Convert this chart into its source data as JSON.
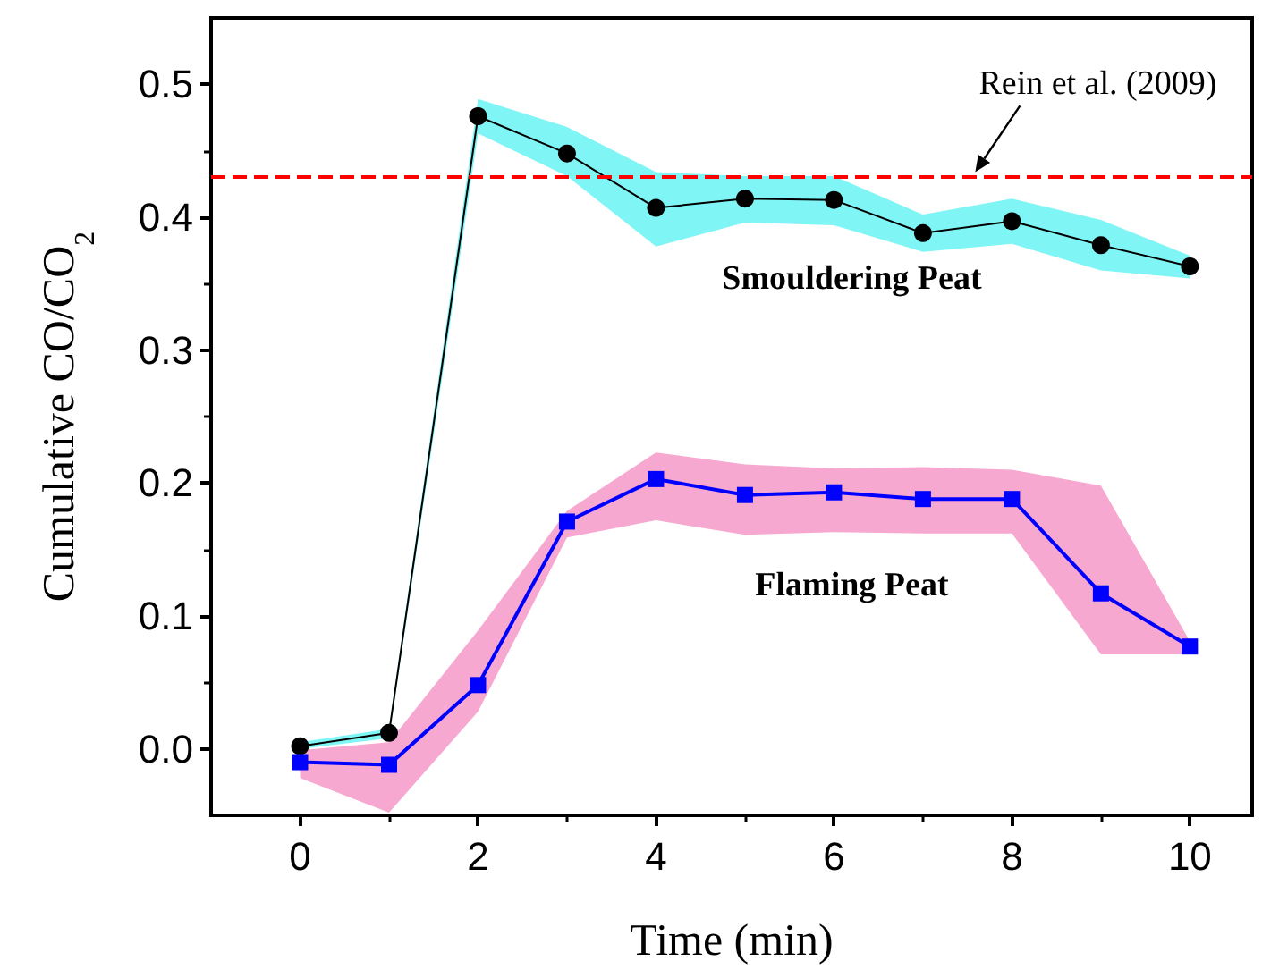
{
  "chart_data": {
    "type": "line",
    "xlabel": "Time (min)",
    "ylabel": "Cumulative CO/CO$_{2}$",
    "x": [
      0,
      1,
      2,
      3,
      4,
      5,
      6,
      7,
      8,
      9,
      10
    ],
    "xlim": [
      -1,
      10.7
    ],
    "xticks": [
      0,
      2,
      4,
      6,
      8,
      10
    ],
    "ylim": [
      -0.05,
      0.55
    ],
    "yticks": [
      {
        "value": 0,
        "label": "0.0"
      },
      0.1,
      0.2,
      0.3,
      0.4,
      0.5
    ],
    "series": [
      {
        "type": "area",
        "color": "#80f5f5",
        "values": [
          null,
          null,
          null,
          null,
          null,
          null,
          null,
          null,
          null,
          null,
          null
        ],
        "lower": [
          0.0,
          0.008,
          0.463,
          0.431,
          0.378,
          0.396,
          0.394,
          0.374,
          0.38,
          0.36,
          0.354
        ],
        "upper": [
          0.005,
          0.015,
          0.489,
          0.468,
          0.434,
          0.431,
          0.431,
          0.402,
          0.414,
          0.398,
          0.371
        ]
      },
      {
        "type": "area",
        "color": "#f7a8d0",
        "values": [
          null,
          null,
          null,
          null,
          null,
          null,
          null,
          null,
          null,
          null,
          null
        ],
        "lower": [
          -0.022,
          -0.048,
          0.028,
          0.159,
          0.172,
          0.161,
          0.163,
          0.162,
          0.162,
          0.071,
          0.071
        ],
        "upper": [
          -0.001,
          0.005,
          0.089,
          0.179,
          0.223,
          0.214,
          0.211,
          0.212,
          0.21,
          0.198,
          0.081
        ]
      },
      {
        "name": "Smouldering Peat",
        "color": "#000000",
        "marker": "circle",
        "values": [
          0.002,
          0.012,
          0.476,
          0.448,
          0.407,
          0.414,
          0.413,
          0.388,
          0.397,
          0.379,
          0.363
        ]
      },
      {
        "name": "Flaming Peat",
        "color": "#0000ff",
        "marker": "square",
        "values": [
          -0.01,
          -0.012,
          0.048,
          0.171,
          0.203,
          0.191,
          0.193,
          0.188,
          0.188,
          0.117,
          0.077
        ]
      }
    ],
    "ref_lines": [
      {
        "axis": "y",
        "value": 0.43,
        "label": "Rein et al. (2009)",
        "color": "#ff0000",
        "line_style": "dashed"
      }
    ],
    "line_style": "solid",
    "grid": false,
    "legend": false
  }
}
